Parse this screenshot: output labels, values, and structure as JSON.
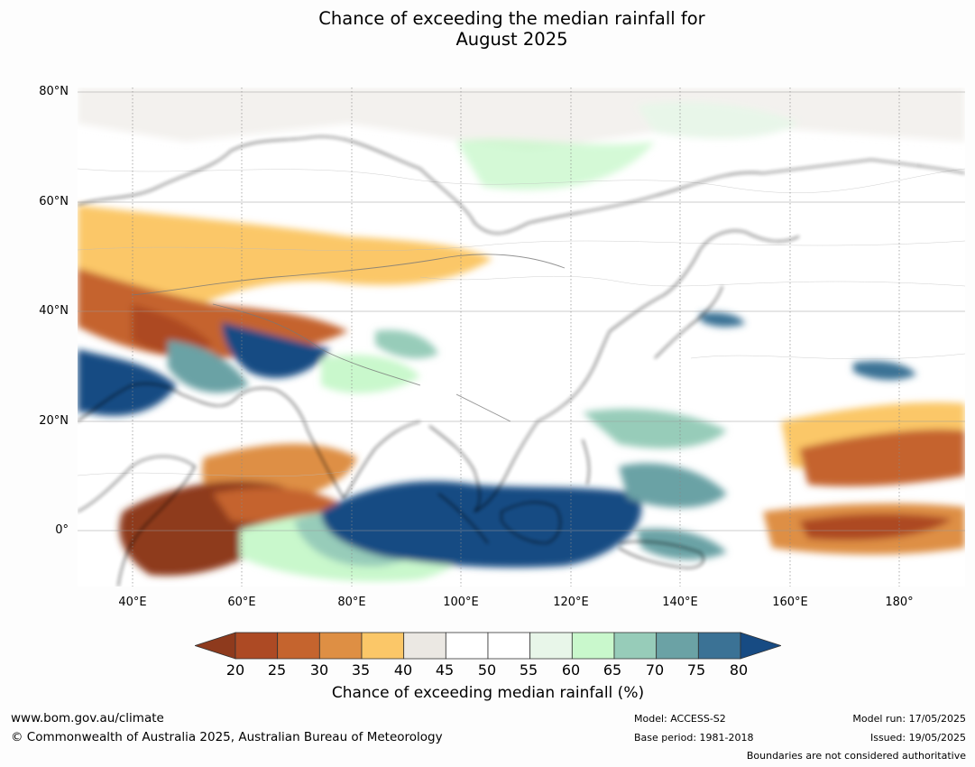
{
  "title_line1": "Chance of exceeding the median rainfall for",
  "title_line2": "August 2025",
  "map": {
    "lat_labels": [
      "80°N",
      "60°N",
      "40°N",
      "20°N",
      "0°"
    ],
    "lon_labels": [
      "40°E",
      "60°E",
      "80°E",
      "100°E",
      "120°E",
      "140°E",
      "160°E",
      "180°"
    ],
    "extent": {
      "lon_min": 30,
      "lon_max": 192,
      "lat_min": -10,
      "lat_max": 81
    }
  },
  "colorbar": {
    "ticks": [
      "20",
      "25",
      "30",
      "35",
      "40",
      "45",
      "50",
      "55",
      "60",
      "65",
      "70",
      "75",
      "80"
    ],
    "colors": [
      "#8e3a1d",
      "#ad4a24",
      "#c5642e",
      "#de8f44",
      "#fbc768",
      "#ebe8e3",
      "#ffffff",
      "#ffffff",
      "#e8f6e9",
      "#c9f8cc",
      "#97ccb9",
      "#6ba2a5",
      "#3b7295",
      "#174b83"
    ],
    "label": "Chance of exceeding median rainfall (%)"
  },
  "footer": {
    "website": "www.bom.gov.au/climate",
    "copyright": "© Commonwealth of Australia 2025, Australian Bureau of Meteorology",
    "model": "Model: ACCESS-S2",
    "base_period": "Base period: 1981-2018",
    "model_run": "Model run: 17/05/2025",
    "issued": "Issued: 19/05/2025",
    "boundaries_note": "Boundaries are not considered authoritative"
  }
}
